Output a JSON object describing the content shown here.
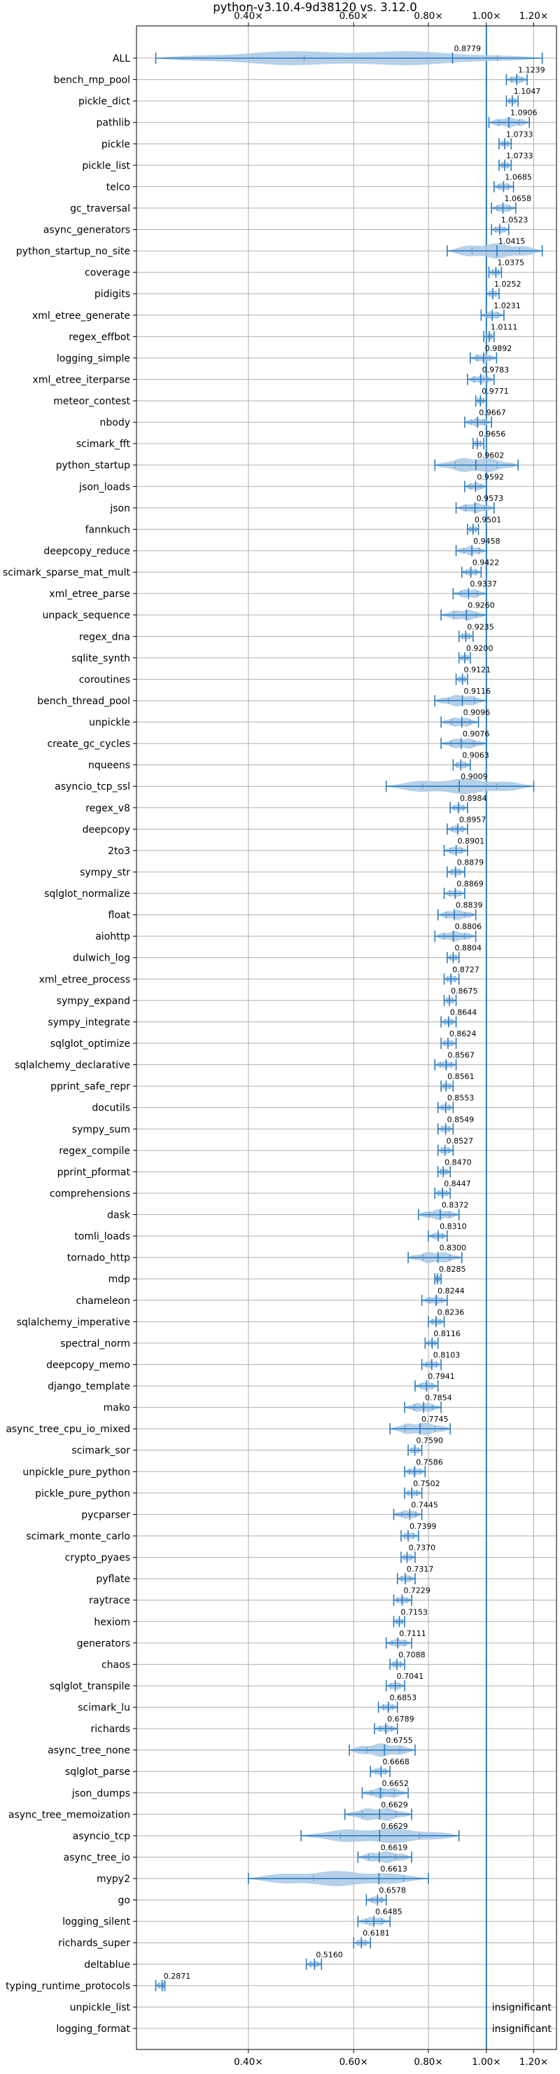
{
  "chart_data": {
    "type": "violin",
    "title": "python-v3.10.4-9d38120 vs. 3.12.0",
    "x_scale": "log",
    "xlim": [
      0.26,
      1.31
    ],
    "x_ticks": [
      0.4,
      0.6,
      0.8,
      1.0,
      1.2
    ],
    "x_tick_labels": [
      "0.40×",
      "0.60×",
      "0.80×",
      "1.00×",
      "1.20×"
    ],
    "reference_line": 1.0,
    "grid": true,
    "colors": {
      "fill": "#a9c8e4",
      "line": "#2b7bbf"
    },
    "insignificant_label": "insignificant",
    "benchmarks": [
      {
        "name": "ALL",
        "value": 0.8779,
        "min": 0.28,
        "max": 1.24,
        "label": "0.8779"
      },
      {
        "name": "bench_mp_pool",
        "value": 1.1239,
        "min": 1.08,
        "max": 1.17,
        "label": "1.1239"
      },
      {
        "name": "pickle_dict",
        "value": 1.1047,
        "min": 1.08,
        "max": 1.13,
        "label": "1.1047"
      },
      {
        "name": "pathlib",
        "value": 1.0906,
        "min": 1.01,
        "max": 1.18,
        "label": "1.0906"
      },
      {
        "name": "pickle",
        "value": 1.0733,
        "min": 1.05,
        "max": 1.1,
        "label": "1.0733"
      },
      {
        "name": "pickle_list",
        "value": 1.0733,
        "min": 1.05,
        "max": 1.1,
        "label": "1.0733"
      },
      {
        "name": "telco",
        "value": 1.0685,
        "min": 1.03,
        "max": 1.11,
        "label": "1.0685"
      },
      {
        "name": "gc_traversal",
        "value": 1.0658,
        "min": 1.02,
        "max": 1.12,
        "label": "1.0658"
      },
      {
        "name": "async_generators",
        "value": 1.0523,
        "min": 1.02,
        "max": 1.09,
        "label": "1.0523"
      },
      {
        "name": "python_startup_no_site",
        "value": 1.0415,
        "min": 0.86,
        "max": 1.24,
        "label": "1.0415"
      },
      {
        "name": "coverage",
        "value": 1.0375,
        "min": 1.01,
        "max": 1.06,
        "label": "1.0375"
      },
      {
        "name": "pidigits",
        "value": 1.0252,
        "min": 1.0,
        "max": 1.05,
        "label": "1.0252"
      },
      {
        "name": "xml_etree_generate",
        "value": 1.0231,
        "min": 0.98,
        "max": 1.07,
        "label": "1.0231"
      },
      {
        "name": "regex_effbot",
        "value": 1.0111,
        "min": 0.99,
        "max": 1.03,
        "label": "1.0111"
      },
      {
        "name": "logging_simple",
        "value": 0.9892,
        "min": 0.94,
        "max": 1.04,
        "label": "0.9892"
      },
      {
        "name": "xml_etree_iterparse",
        "value": 0.9783,
        "min": 0.93,
        "max": 1.03,
        "label": "0.9783"
      },
      {
        "name": "meteor_contest",
        "value": 0.9771,
        "min": 0.96,
        "max": 1.0,
        "label": "0.9771"
      },
      {
        "name": "nbody",
        "value": 0.9667,
        "min": 0.92,
        "max": 1.02,
        "label": "0.9667"
      },
      {
        "name": "scimark_fft",
        "value": 0.9656,
        "min": 0.95,
        "max": 0.99,
        "label": "0.9656"
      },
      {
        "name": "python_startup",
        "value": 0.9602,
        "min": 0.82,
        "max": 1.13,
        "label": "0.9602"
      },
      {
        "name": "json_loads",
        "value": 0.9592,
        "min": 0.92,
        "max": 1.0,
        "label": "0.9592"
      },
      {
        "name": "json",
        "value": 0.9573,
        "min": 0.89,
        "max": 1.03,
        "label": "0.9573"
      },
      {
        "name": "fannkuch",
        "value": 0.9501,
        "min": 0.93,
        "max": 0.97,
        "label": "0.9501"
      },
      {
        "name": "deepcopy_reduce",
        "value": 0.9458,
        "min": 0.89,
        "max": 1.0,
        "label": "0.9458"
      },
      {
        "name": "scimark_sparse_mat_mult",
        "value": 0.9422,
        "min": 0.91,
        "max": 0.98,
        "label": "0.9422"
      },
      {
        "name": "xml_etree_parse",
        "value": 0.9337,
        "min": 0.88,
        "max": 1.0,
        "label": "0.9337"
      },
      {
        "name": "unpack_sequence",
        "value": 0.926,
        "min": 0.84,
        "max": 1.0,
        "label": "0.9260"
      },
      {
        "name": "regex_dna",
        "value": 0.9235,
        "min": 0.9,
        "max": 0.95,
        "label": "0.9235"
      },
      {
        "name": "sqlite_synth",
        "value": 0.92,
        "min": 0.9,
        "max": 0.94,
        "label": "0.9200"
      },
      {
        "name": "coroutines",
        "value": 0.9121,
        "min": 0.89,
        "max": 0.93,
        "label": "0.9121"
      },
      {
        "name": "bench_thread_pool",
        "value": 0.9116,
        "min": 0.82,
        "max": 1.0,
        "label": "0.9116"
      },
      {
        "name": "unpickle",
        "value": 0.9096,
        "min": 0.84,
        "max": 0.97,
        "label": "0.9096"
      },
      {
        "name": "create_gc_cycles",
        "value": 0.9076,
        "min": 0.84,
        "max": 1.0,
        "label": "0.9076"
      },
      {
        "name": "nqueens",
        "value": 0.9063,
        "min": 0.88,
        "max": 0.94,
        "label": "0.9063"
      },
      {
        "name": "asyncio_tcp_ssl",
        "value": 0.9009,
        "min": 0.68,
        "max": 1.2,
        "label": "0.9009"
      },
      {
        "name": "regex_v8",
        "value": 0.8984,
        "min": 0.87,
        "max": 0.93,
        "label": "0.8984"
      },
      {
        "name": "deepcopy",
        "value": 0.8957,
        "min": 0.86,
        "max": 0.93,
        "label": "0.8957"
      },
      {
        "name": "2to3",
        "value": 0.8901,
        "min": 0.85,
        "max": 0.93,
        "label": "0.8901"
      },
      {
        "name": "sympy_str",
        "value": 0.8879,
        "min": 0.86,
        "max": 0.92,
        "label": "0.8879"
      },
      {
        "name": "sqlglot_normalize",
        "value": 0.8869,
        "min": 0.85,
        "max": 0.92,
        "label": "0.8869"
      },
      {
        "name": "float",
        "value": 0.8839,
        "min": 0.83,
        "max": 0.96,
        "label": "0.8839"
      },
      {
        "name": "aiohttp",
        "value": 0.8806,
        "min": 0.82,
        "max": 0.96,
        "label": "0.8806"
      },
      {
        "name": "dulwich_log",
        "value": 0.8804,
        "min": 0.86,
        "max": 0.9,
        "label": "0.8804"
      },
      {
        "name": "xml_etree_process",
        "value": 0.8727,
        "min": 0.85,
        "max": 0.9,
        "label": "0.8727"
      },
      {
        "name": "sympy_expand",
        "value": 0.8675,
        "min": 0.85,
        "max": 0.89,
        "label": "0.8675"
      },
      {
        "name": "sympy_integrate",
        "value": 0.8644,
        "min": 0.84,
        "max": 0.89,
        "label": "0.8644"
      },
      {
        "name": "sqlglot_optimize",
        "value": 0.8624,
        "min": 0.84,
        "max": 0.89,
        "label": "0.8624"
      },
      {
        "name": "sqlalchemy_declarative",
        "value": 0.8567,
        "min": 0.82,
        "max": 0.89,
        "label": "0.8567"
      },
      {
        "name": "pprint_safe_repr",
        "value": 0.8561,
        "min": 0.84,
        "max": 0.88,
        "label": "0.8561"
      },
      {
        "name": "docutils",
        "value": 0.8553,
        "min": 0.83,
        "max": 0.88,
        "label": "0.8553"
      },
      {
        "name": "sympy_sum",
        "value": 0.8549,
        "min": 0.83,
        "max": 0.88,
        "label": "0.8549"
      },
      {
        "name": "regex_compile",
        "value": 0.8527,
        "min": 0.83,
        "max": 0.88,
        "label": "0.8527"
      },
      {
        "name": "pprint_pformat",
        "value": 0.847,
        "min": 0.83,
        "max": 0.87,
        "label": "0.8470"
      },
      {
        "name": "comprehensions",
        "value": 0.8447,
        "min": 0.82,
        "max": 0.87,
        "label": "0.8447"
      },
      {
        "name": "dask",
        "value": 0.8372,
        "min": 0.77,
        "max": 0.9,
        "label": "0.8372"
      },
      {
        "name": "tomli_loads",
        "value": 0.831,
        "min": 0.8,
        "max": 0.86,
        "label": "0.8310"
      },
      {
        "name": "tornado_http",
        "value": 0.83,
        "min": 0.74,
        "max": 0.91,
        "label": "0.8300"
      },
      {
        "name": "mdp",
        "value": 0.8285,
        "min": 0.82,
        "max": 0.84,
        "label": "0.8285"
      },
      {
        "name": "chameleon",
        "value": 0.8244,
        "min": 0.78,
        "max": 0.86,
        "label": "0.8244"
      },
      {
        "name": "sqlalchemy_imperative",
        "value": 0.8236,
        "min": 0.8,
        "max": 0.85,
        "label": "0.8236"
      },
      {
        "name": "spectral_norm",
        "value": 0.8116,
        "min": 0.79,
        "max": 0.83,
        "label": "0.8116"
      },
      {
        "name": "deepcopy_memo",
        "value": 0.8103,
        "min": 0.78,
        "max": 0.84,
        "label": "0.8103"
      },
      {
        "name": "django_template",
        "value": 0.7941,
        "min": 0.76,
        "max": 0.83,
        "label": "0.7941"
      },
      {
        "name": "mako",
        "value": 0.7854,
        "min": 0.73,
        "max": 0.84,
        "label": "0.7854"
      },
      {
        "name": "async_tree_cpu_io_mixed",
        "value": 0.7745,
        "min": 0.69,
        "max": 0.87,
        "label": "0.7745"
      },
      {
        "name": "scimark_sor",
        "value": 0.759,
        "min": 0.74,
        "max": 0.78,
        "label": "0.7590"
      },
      {
        "name": "unpickle_pure_python",
        "value": 0.7586,
        "min": 0.73,
        "max": 0.79,
        "label": "0.7586"
      },
      {
        "name": "pickle_pure_python",
        "value": 0.7502,
        "min": 0.73,
        "max": 0.78,
        "label": "0.7502"
      },
      {
        "name": "pycparser",
        "value": 0.7445,
        "min": 0.7,
        "max": 0.78,
        "label": "0.7445"
      },
      {
        "name": "scimark_monte_carlo",
        "value": 0.7399,
        "min": 0.72,
        "max": 0.77,
        "label": "0.7399"
      },
      {
        "name": "crypto_pyaes",
        "value": 0.737,
        "min": 0.72,
        "max": 0.76,
        "label": "0.7370"
      },
      {
        "name": "pyflate",
        "value": 0.7317,
        "min": 0.71,
        "max": 0.76,
        "label": "0.7317"
      },
      {
        "name": "raytrace",
        "value": 0.7229,
        "min": 0.7,
        "max": 0.75,
        "label": "0.7229"
      },
      {
        "name": "hexiom",
        "value": 0.7153,
        "min": 0.7,
        "max": 0.73,
        "label": "0.7153"
      },
      {
        "name": "generators",
        "value": 0.7111,
        "min": 0.68,
        "max": 0.75,
        "label": "0.7111"
      },
      {
        "name": "chaos",
        "value": 0.7088,
        "min": 0.69,
        "max": 0.73,
        "label": "0.7088"
      },
      {
        "name": "sqlglot_transpile",
        "value": 0.7041,
        "min": 0.68,
        "max": 0.73,
        "label": "0.7041"
      },
      {
        "name": "scimark_lu",
        "value": 0.6853,
        "min": 0.66,
        "max": 0.71,
        "label": "0.6853"
      },
      {
        "name": "richards",
        "value": 0.6789,
        "min": 0.65,
        "max": 0.71,
        "label": "0.6789"
      },
      {
        "name": "async_tree_none",
        "value": 0.6755,
        "min": 0.59,
        "max": 0.76,
        "label": "0.6755"
      },
      {
        "name": "sqlglot_parse",
        "value": 0.6668,
        "min": 0.64,
        "max": 0.69,
        "label": "0.6668"
      },
      {
        "name": "json_dumps",
        "value": 0.6652,
        "min": 0.62,
        "max": 0.74,
        "label": "0.6652"
      },
      {
        "name": "async_tree_memoization",
        "value": 0.6629,
        "min": 0.58,
        "max": 0.75,
        "label": "0.6629"
      },
      {
        "name": "asyncio_tcp",
        "value": 0.6629,
        "min": 0.49,
        "max": 0.9,
        "label": "0.6629"
      },
      {
        "name": "async_tree_io",
        "value": 0.6619,
        "min": 0.61,
        "max": 0.75,
        "label": "0.6619"
      },
      {
        "name": "mypy2",
        "value": 0.6613,
        "min": 0.4,
        "max": 0.8,
        "label": "0.6613"
      },
      {
        "name": "go",
        "value": 0.6578,
        "min": 0.63,
        "max": 0.68,
        "label": "0.6578"
      },
      {
        "name": "logging_silent",
        "value": 0.6485,
        "min": 0.61,
        "max": 0.69,
        "label": "0.6485"
      },
      {
        "name": "richards_super",
        "value": 0.6181,
        "min": 0.6,
        "max": 0.64,
        "label": "0.6181"
      },
      {
        "name": "deltablue",
        "value": 0.516,
        "min": 0.5,
        "max": 0.53,
        "label": "0.5160"
      },
      {
        "name": "typing_runtime_protocols",
        "value": 0.2871,
        "min": 0.28,
        "max": 0.29,
        "label": "0.2871"
      },
      {
        "name": "unpickle_list",
        "value": null,
        "min": null,
        "max": null,
        "label": ""
      },
      {
        "name": "logging_format",
        "value": null,
        "min": null,
        "max": null,
        "label": ""
      }
    ]
  }
}
